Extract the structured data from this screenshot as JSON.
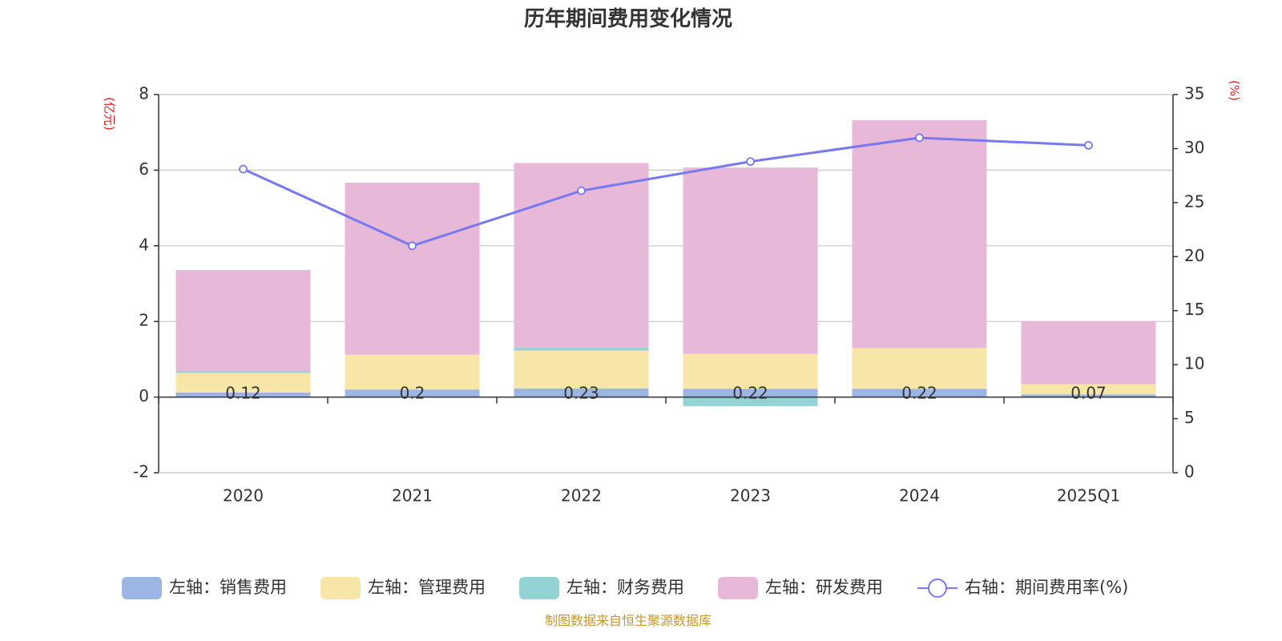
{
  "chart_data": {
    "type": "bar",
    "title": "历年期间费用变化情况",
    "categories": [
      "2020",
      "2021",
      "2022",
      "2023",
      "2024",
      "2025Q1"
    ],
    "left_axis": {
      "unit": "(亿元)",
      "ylim": [
        -2,
        8
      ],
      "ticks": [
        "8",
        "6",
        "4",
        "2",
        "0",
        "-2"
      ],
      "tick_values": [
        8,
        6,
        4,
        2,
        0,
        -2
      ]
    },
    "right_axis": {
      "unit": "(%)",
      "ylim": [
        0,
        35
      ],
      "ticks": [
        "35",
        "30",
        "25",
        "20",
        "15",
        "10",
        "5",
        "0"
      ],
      "tick_values": [
        35,
        30,
        25,
        20,
        15,
        10,
        5,
        0
      ]
    },
    "series": [
      {
        "name": "左轴：销售费用",
        "axis": "left",
        "stack": true,
        "color": "#9db5e3",
        "values": [
          0.12,
          0.2,
          0.23,
          0.22,
          0.22,
          0.07
        ],
        "data_labels": [
          "0.12",
          "0.2",
          "0.23",
          "0.22",
          "0.22",
          "0.07"
        ]
      },
      {
        "name": "左轴：管理费用",
        "axis": "left",
        "stack": true,
        "color": "#f7e6a8",
        "values": [
          0.52,
          0.92,
          1.0,
          0.92,
          1.08,
          0.27
        ]
      },
      {
        "name": "左轴：财务费用",
        "axis": "left",
        "stack": true,
        "color": "#94d3d3",
        "values": [
          0.04,
          0.0,
          0.08,
          -0.24,
          0.0,
          0.0
        ]
      },
      {
        "name": "左轴：研发费用",
        "axis": "left",
        "stack": true,
        "color": "#e8b8d9",
        "values": [
          2.68,
          4.55,
          4.88,
          4.93,
          6.02,
          1.67
        ]
      },
      {
        "name": "右轴：期间费用率(%)",
        "axis": "right",
        "type": "line",
        "color": "#7679f0",
        "values": [
          28.1,
          21.0,
          26.1,
          28.8,
          31.0,
          30.3
        ]
      }
    ]
  },
  "source_text": "制图数据来自恒生聚源数据库"
}
